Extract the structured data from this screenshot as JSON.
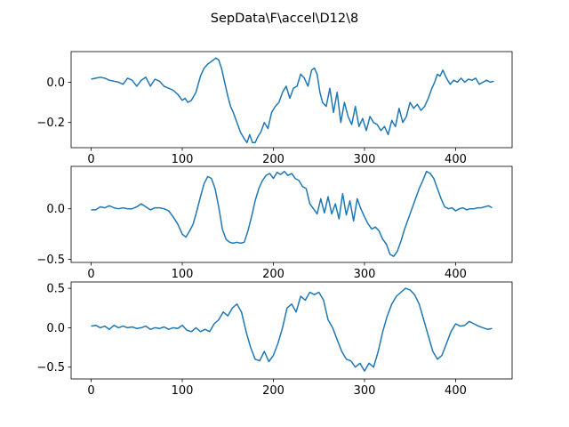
{
  "title": "SepData\\F\\accel\\D12\\8",
  "line_color": "#1f77b4",
  "chart_data": [
    {
      "type": "line",
      "title": "",
      "xlabel": "",
      "ylabel": "",
      "xlim": [
        -22,
        462
      ],
      "ylim": [
        -0.325,
        0.152
      ],
      "xticks": [
        0,
        100,
        200,
        300,
        400
      ],
      "yticks": [
        -0.2,
        0.0
      ],
      "ytick_labels": [
        "−0.2",
        "0.0"
      ],
      "grid": false,
      "series": [
        {
          "x": [
            0,
            5,
            10,
            15,
            20,
            25,
            30,
            35,
            40,
            45,
            50,
            55,
            60,
            65,
            70,
            75,
            80,
            85,
            90,
            95,
            100,
            103,
            106,
            110,
            115,
            120,
            124,
            128,
            131,
            134,
            137,
            140,
            143,
            147,
            150,
            153,
            156,
            160,
            164,
            168,
            171,
            174,
            177,
            180,
            183,
            186,
            190,
            194,
            198,
            202,
            206,
            210,
            214,
            218,
            222,
            226,
            230,
            234,
            238,
            242,
            245,
            248,
            251,
            254,
            258,
            262,
            266,
            270,
            274,
            278,
            282,
            286,
            290,
            294,
            298,
            302,
            306,
            310,
            314,
            318,
            322,
            326,
            330,
            334,
            338,
            342,
            346,
            350,
            354,
            358,
            362,
            366,
            370,
            374,
            377,
            380,
            383,
            386,
            390,
            394,
            398,
            402,
            406,
            410,
            414,
            418,
            422,
            426,
            430,
            434,
            438,
            442
          ],
          "y": [
            0.015,
            0.02,
            0.025,
            0.02,
            0.01,
            0.005,
            0.0,
            -0.01,
            0.02,
            0.01,
            -0.02,
            0.01,
            0.025,
            -0.02,
            0.015,
            0.005,
            -0.02,
            -0.03,
            -0.04,
            -0.06,
            -0.09,
            -0.08,
            -0.1,
            -0.09,
            -0.05,
            0.03,
            0.07,
            0.09,
            0.1,
            0.11,
            0.12,
            0.11,
            0.07,
            -0.01,
            -0.07,
            -0.12,
            -0.15,
            -0.2,
            -0.25,
            -0.28,
            -0.3,
            -0.26,
            -0.3,
            -0.3,
            -0.27,
            -0.25,
            -0.2,
            -0.23,
            -0.15,
            -0.12,
            -0.1,
            -0.05,
            -0.02,
            -0.08,
            -0.03,
            -0.02,
            0.04,
            0.02,
            -0.02,
            0.06,
            0.07,
            0.04,
            -0.05,
            -0.1,
            -0.12,
            -0.03,
            -0.15,
            -0.05,
            -0.2,
            -0.1,
            -0.17,
            -0.21,
            -0.12,
            -0.22,
            -0.18,
            -0.24,
            -0.17,
            -0.2,
            -0.21,
            -0.24,
            -0.22,
            -0.26,
            -0.19,
            -0.22,
            -0.13,
            -0.2,
            -0.17,
            -0.1,
            -0.13,
            -0.11,
            -0.14,
            -0.12,
            -0.08,
            -0.03,
            0.0,
            0.04,
            0.03,
            0.06,
            0.02,
            -0.01,
            0.01,
            0.0,
            0.02,
            0.0,
            0.015,
            0.01,
            0.02,
            -0.01,
            0.0,
            0.01,
            0.0,
            0.005
          ]
        }
      ]
    },
    {
      "type": "line",
      "title": "",
      "xlabel": "",
      "ylabel": "",
      "xlim": [
        -22,
        462
      ],
      "ylim": [
        -0.53,
        0.42
      ],
      "xticks": [
        0,
        100,
        200,
        300,
        400
      ],
      "yticks": [
        -0.5,
        0.0
      ],
      "ytick_labels": [
        "−0.5",
        "0.0"
      ],
      "grid": false,
      "series": [
        {
          "x": [
            0,
            5,
            10,
            15,
            20,
            25,
            30,
            35,
            40,
            45,
            50,
            55,
            60,
            65,
            70,
            75,
            80,
            85,
            90,
            95,
            100,
            104,
            108,
            112,
            116,
            120,
            124,
            128,
            132,
            136,
            140,
            144,
            148,
            152,
            156,
            160,
            164,
            168,
            172,
            176,
            180,
            184,
            188,
            192,
            196,
            200,
            204,
            208,
            212,
            216,
            220,
            224,
            228,
            232,
            236,
            240,
            244,
            248,
            252,
            256,
            260,
            264,
            268,
            272,
            276,
            280,
            284,
            288,
            292,
            296,
            300,
            304,
            308,
            312,
            316,
            320,
            324,
            328,
            332,
            336,
            340,
            344,
            348,
            352,
            356,
            360,
            364,
            368,
            372,
            376,
            380,
            384,
            388,
            392,
            396,
            400,
            404,
            408,
            412,
            416,
            420,
            424,
            428,
            432,
            436,
            440
          ],
          "y": [
            -0.01,
            -0.01,
            0.02,
            0.01,
            0.03,
            0.01,
            0.0,
            0.01,
            0.0,
            0.0,
            0.02,
            0.05,
            0.02,
            -0.01,
            0.01,
            0.01,
            0.0,
            -0.02,
            -0.08,
            -0.15,
            -0.25,
            -0.28,
            -0.22,
            -0.15,
            -0.02,
            0.12,
            0.25,
            0.32,
            0.3,
            0.2,
            0.02,
            -0.2,
            -0.3,
            -0.33,
            -0.34,
            -0.33,
            -0.34,
            -0.33,
            -0.22,
            -0.08,
            0.08,
            0.2,
            0.28,
            0.33,
            0.35,
            0.3,
            0.36,
            0.34,
            0.37,
            0.33,
            0.35,
            0.3,
            0.28,
            0.22,
            0.2,
            0.05,
            0.0,
            -0.05,
            0.1,
            -0.04,
            0.12,
            -0.05,
            0.05,
            -0.1,
            0.15,
            -0.06,
            0.08,
            -0.12,
            0.1,
            0.0,
            -0.08,
            -0.15,
            -0.2,
            -0.18,
            -0.22,
            -0.3,
            -0.35,
            -0.45,
            -0.47,
            -0.42,
            -0.32,
            -0.2,
            -0.1,
            0.0,
            0.1,
            0.2,
            0.28,
            0.37,
            0.35,
            0.3,
            0.2,
            0.1,
            0.02,
            0.0,
            0.01,
            -0.02,
            0.0,
            0.01,
            -0.01,
            0.0,
            0.0,
            0.01,
            0.01,
            0.02,
            0.03,
            0.01
          ]
        }
      ]
    },
    {
      "type": "line",
      "title": "",
      "xlabel": "",
      "ylabel": "",
      "xlim": [
        -22,
        462
      ],
      "ylim": [
        -0.65,
        0.58
      ],
      "xticks": [
        0,
        100,
        200,
        300,
        400
      ],
      "yticks": [
        -0.5,
        0.0,
        0.5
      ],
      "ytick_labels": [
        "−0.5",
        "0.0",
        "0.5"
      ],
      "grid": false,
      "series": [
        {
          "x": [
            0,
            5,
            10,
            15,
            20,
            25,
            30,
            35,
            40,
            45,
            50,
            55,
            60,
            65,
            70,
            75,
            80,
            85,
            90,
            95,
            100,
            105,
            110,
            115,
            120,
            125,
            130,
            135,
            140,
            145,
            150,
            155,
            160,
            165,
            170,
            175,
            180,
            185,
            190,
            195,
            200,
            205,
            210,
            215,
            220,
            225,
            230,
            235,
            240,
            245,
            250,
            255,
            260,
            265,
            270,
            275,
            280,
            285,
            290,
            295,
            300,
            305,
            310,
            315,
            320,
            325,
            330,
            335,
            340,
            345,
            350,
            355,
            360,
            365,
            370,
            375,
            380,
            385,
            390,
            395,
            400,
            405,
            410,
            415,
            420,
            425,
            430,
            435,
            440
          ],
          "y": [
            0.02,
            0.03,
            0.0,
            0.02,
            -0.02,
            0.03,
            0.0,
            0.02,
            0.0,
            0.01,
            -0.01,
            0.0,
            0.02,
            -0.02,
            0.0,
            -0.01,
            0.01,
            -0.02,
            0.0,
            -0.01,
            0.03,
            -0.03,
            -0.05,
            0.0,
            -0.05,
            -0.02,
            -0.05,
            0.05,
            0.1,
            0.2,
            0.15,
            0.25,
            0.3,
            0.2,
            -0.05,
            -0.25,
            -0.4,
            -0.42,
            -0.3,
            -0.43,
            -0.35,
            -0.2,
            0.0,
            0.25,
            0.3,
            0.2,
            0.4,
            0.35,
            0.45,
            0.42,
            0.45,
            0.35,
            0.1,
            0.0,
            -0.15,
            -0.3,
            -0.4,
            -0.42,
            -0.5,
            -0.45,
            -0.55,
            -0.45,
            -0.5,
            -0.3,
            -0.05,
            0.15,
            0.3,
            0.4,
            0.45,
            0.5,
            0.48,
            0.42,
            0.3,
            0.1,
            -0.1,
            -0.3,
            -0.4,
            -0.35,
            -0.2,
            -0.05,
            0.05,
            0.02,
            0.03,
            0.08,
            0.05,
            0.02,
            0.0,
            -0.02,
            -0.01
          ]
        }
      ]
    }
  ]
}
